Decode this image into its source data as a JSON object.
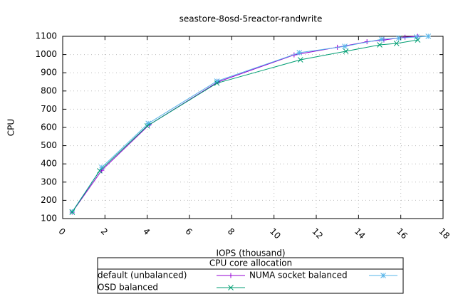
{
  "chart_data": {
    "type": "line",
    "title": "seastore-8osd-5reactor-randwrite",
    "x_label": "IOPS (thousand)",
    "y_label": "CPU",
    "xlim": [
      0,
      18
    ],
    "xticks": [
      0,
      2,
      4,
      6,
      8,
      10,
      12,
      14,
      16,
      18
    ],
    "ylim": [
      100,
      1100
    ],
    "yticks": [
      100,
      200,
      300,
      400,
      500,
      600,
      700,
      800,
      900,
      1000,
      1100
    ],
    "grid": true,
    "legend_title": "CPU core allocation",
    "legend_position": "below",
    "series": [
      {
        "name": "default (unbalanced)",
        "color": "#9400d3",
        "marker": "plus",
        "x": [
          0.45,
          1.85,
          4.1,
          7.35,
          10.95,
          13.0,
          14.4,
          15.2,
          16.2,
          16.8
        ],
        "values": [
          135,
          365,
          615,
          850,
          998,
          1040,
          1070,
          1080,
          1095,
          1100
        ]
      },
      {
        "name": "NUMA socket balanced",
        "color": "#56b4e9",
        "marker": "star",
        "x": [
          0.45,
          1.85,
          4.05,
          7.3,
          11.2,
          13.35,
          15.1,
          15.9,
          16.75,
          17.3
        ],
        "values": [
          137,
          381,
          622,
          854,
          1010,
          1045,
          1084,
          1090,
          1096,
          1100
        ]
      },
      {
        "name": "OSD balanced",
        "color": "#009e73",
        "marker": "cross",
        "x": [
          0.45,
          1.75,
          4.0,
          7.3,
          11.25,
          13.4,
          15.0,
          15.8,
          16.8
        ],
        "values": [
          135,
          362,
          608,
          843,
          971,
          1018,
          1053,
          1061,
          1080
        ]
      }
    ]
  }
}
